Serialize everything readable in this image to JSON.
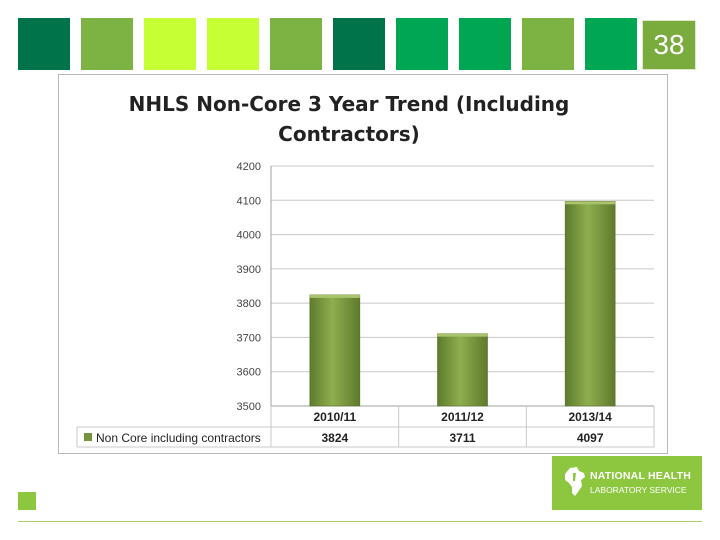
{
  "slide_number": "38",
  "header_squares": [
    "#00734a",
    "#7cb342",
    "#c6ff33",
    "#c6ff33",
    "#7cb342",
    "#00734a",
    "#00a651",
    "#00a651",
    "#7cb342",
    "#00a651"
  ],
  "logo": {
    "line1": "NATIONAL HEALTH",
    "line2": "LABORATORY SERVICE",
    "icon": "africa-map-icon",
    "color": "#8dc63f"
  },
  "chart_data": {
    "type": "bar",
    "title": "NHLS Non-Core 3 Year Trend (Including Contractors)",
    "title_lines": [
      "NHLS Non-Core 3 Year Trend (Including",
      "Contractors)"
    ],
    "categories": [
      "2010/11",
      "2011/12",
      "2013/14"
    ],
    "series": [
      {
        "name": "Non Core including contractors",
        "values": [
          3824,
          3711,
          4097
        ],
        "color": "#77933c"
      }
    ],
    "data_labels": [
      "3824",
      "3711",
      "4097"
    ],
    "ylim": [
      3500,
      4200
    ],
    "y_ticks": [
      "3500",
      "3600",
      "3700",
      "3800",
      "3900",
      "4000",
      "4100",
      "4200"
    ],
    "grid": true,
    "legend": "data-table-left",
    "xlabel": "",
    "ylabel": ""
  }
}
